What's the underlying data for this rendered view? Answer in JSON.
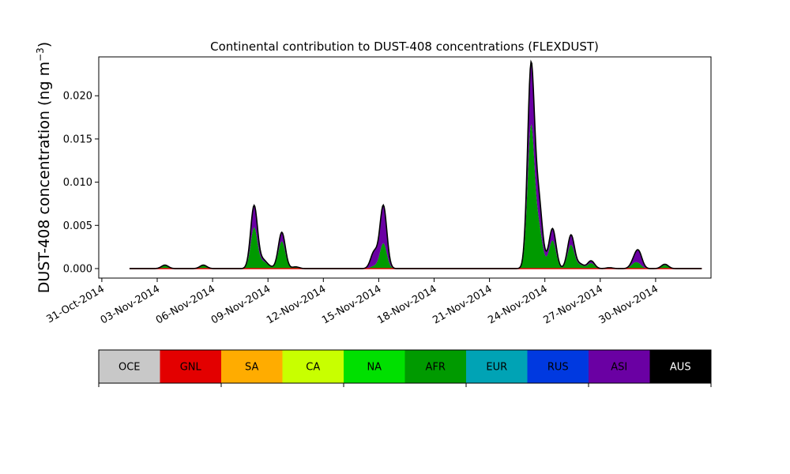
{
  "chart_data": {
    "type": "area",
    "title": "Continental contribution to DUST-408 concentrations (FLEXDUST)",
    "ylabel": "DUST-408 concentration (ng m",
    "ylabel_exp": "−3",
    "ylabel_close": ")",
    "xlabel": "",
    "ylim": [
      -0.0011,
      0.0245
    ],
    "yticks": [
      "0.000",
      "0.005",
      "0.010",
      "0.015",
      "0.020"
    ],
    "ytick_values": [
      0,
      0.005,
      0.01,
      0.015,
      0.02
    ],
    "xticks": [
      "31-Oct-2014",
      "03-Nov-2014",
      "06-Nov-2014",
      "09-Nov-2014",
      "12-Nov-2014",
      "15-Nov-2014",
      "18-Nov-2014",
      "21-Nov-2014",
      "24-Nov-2014",
      "27-Nov-2014",
      "30-Nov-2014"
    ],
    "xtick_dates": [
      "2014-10-31",
      "2014-11-03",
      "2014-11-06",
      "2014-11-09",
      "2014-11-12",
      "2014-11-15",
      "2014-11-18",
      "2014-11-21",
      "2014-11-24",
      "2014-11-27",
      "2014-11-30"
    ],
    "x_range": [
      "2014-10-30T20:00",
      "2014-12-03T00:00"
    ],
    "series_range": [
      "2014-11-01T12:00",
      "2014-12-02T12:00"
    ],
    "grid": false,
    "legend_placement": "below",
    "peaks": [
      {
        "t": "2014-11-03T10:00",
        "total": 0.0004,
        "asi": 0.1
      },
      {
        "t": "2014-11-05T12:00",
        "total": 0.0004,
        "asi": 0.1
      },
      {
        "t": "2014-11-08T06:00",
        "total": 0.0073,
        "asi": 0.35
      },
      {
        "t": "2014-11-08T18:00",
        "total": 0.0009,
        "asi": 0.2
      },
      {
        "t": "2014-11-09T02:00",
        "total": 0.0002,
        "asi": 0.1
      },
      {
        "t": "2014-11-09T18:00",
        "total": 0.0042,
        "asi": 0.25
      },
      {
        "t": "2014-11-10T12:00",
        "total": 0.0002,
        "asi": 0.1
      },
      {
        "t": "2014-11-14T18:00",
        "total": 0.0019,
        "asi": 0.85
      },
      {
        "t": "2014-11-15T06:00",
        "total": 0.0073,
        "asi": 0.6
      },
      {
        "t": "2014-11-23T06:00",
        "total": 0.0233,
        "asi": 0.3
      },
      {
        "t": "2014-11-23T16:00",
        "total": 0.0074,
        "asi": 0.4
      },
      {
        "t": "2014-11-24T00:00",
        "total": 0.0005,
        "asi": 0.2
      },
      {
        "t": "2014-11-24T10:00",
        "total": 0.0046,
        "asi": 0.3
      },
      {
        "t": "2014-11-25T10:00",
        "total": 0.0039,
        "asi": 0.3
      },
      {
        "t": "2014-11-25T22:00",
        "total": 0.0005,
        "asi": 0.2
      },
      {
        "t": "2014-11-26T12:00",
        "total": 0.0009,
        "asi": 0.3
      },
      {
        "t": "2014-11-27T12:00",
        "total": 0.0001,
        "asi": 0.3
      },
      {
        "t": "2014-11-28T20:00",
        "total": 0.0008,
        "asi": 0.4
      },
      {
        "t": "2014-11-29T02:00",
        "total": 0.0018,
        "asi": 0.75
      },
      {
        "t": "2014-11-30T12:00",
        "total": 0.0005,
        "asi": 0.2
      }
    ],
    "colors": {
      "afr": "#009a00",
      "asi": "#6a00a3",
      "outline": "#000000",
      "baseline": "#e30000"
    }
  },
  "legend": {
    "items": [
      {
        "label": "OCE",
        "color": "#c8c8c8",
        "text_color": "#000000"
      },
      {
        "label": "GNL",
        "color": "#e30000",
        "text_color": "#000000"
      },
      {
        "label": "SA",
        "color": "#ffac00",
        "text_color": "#000000"
      },
      {
        "label": "CA",
        "color": "#c8ff00",
        "text_color": "#000000"
      },
      {
        "label": "NA",
        "color": "#00e000",
        "text_color": "#000000"
      },
      {
        "label": "AFR",
        "color": "#009a00",
        "text_color": "#000000"
      },
      {
        "label": "EUR",
        "color": "#00a3b5",
        "text_color": "#000000"
      },
      {
        "label": "RUS",
        "color": "#0039e0",
        "text_color": "#000000"
      },
      {
        "label": "ASI",
        "color": "#6a00a3",
        "text_color": "#000000"
      },
      {
        "label": "AUS",
        "color": "#000000",
        "text_color": "#ffffff"
      }
    ]
  }
}
